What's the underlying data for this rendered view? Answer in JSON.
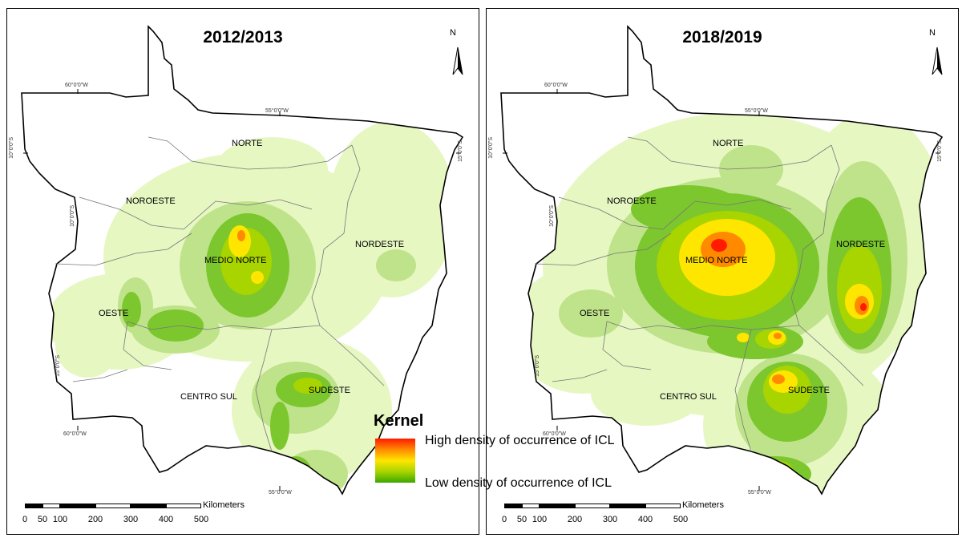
{
  "panels": [
    {
      "title": "2012/2013",
      "north": "N",
      "coords": [
        "60°0'0\"W",
        "55°0'0\"W",
        "10°0'0\"S",
        "15°0'0\"S",
        "60°0'0\"W",
        "55°0'0\"W",
        "10°0'0\"S",
        "15°0'0\"S"
      ],
      "regions": [
        "NORTE",
        "NOROESTE",
        "MEDIO NORTE",
        "NORDESTE",
        "OESTE",
        "CENTRO SUL",
        "SUDESTE"
      ],
      "scale": {
        "unit": "Kilometers",
        "ticks": [
          "0",
          "50",
          "100",
          "200",
          "300",
          "400",
          "500"
        ]
      }
    },
    {
      "title": "2018/2019",
      "north": "N",
      "coords": [
        "60°0'0\"W",
        "55°0'0\"W",
        "10°0'0\"S",
        "15°0'0\"S",
        "60°0'0\"W",
        "55°0'0\"W",
        "10°0'0\"S",
        "15°0'0\"S"
      ],
      "regions": [
        "NORTE",
        "NOROESTE",
        "MEDIO NORTE",
        "NORDESTE",
        "OESTE",
        "CENTRO SUL",
        "SUDESTE"
      ],
      "scale": {
        "unit": "Kilometers",
        "ticks": [
          "0",
          "50",
          "100",
          "200",
          "300",
          "400",
          "500"
        ]
      }
    }
  ],
  "legend": {
    "title": "Kernel",
    "high": "High density of occurrence of ICL",
    "low": "Low density of occurrence of ICL"
  },
  "colors": {
    "low": "#3aa800",
    "mid_low": "#a8d400",
    "mid": "#ffe600",
    "mid_high": "#ff8a00",
    "high": "#ff1a00",
    "background_density": "#e6f7c2"
  }
}
